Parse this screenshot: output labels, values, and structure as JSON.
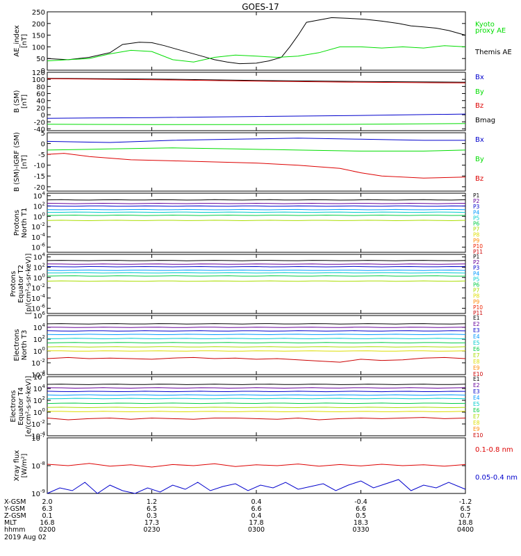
{
  "title": "GOES-17",
  "chart_data": [
    {
      "type": "line",
      "ylabel": "AE_index\n[nT]",
      "ylim": [
        0,
        250
      ],
      "yticks": [
        "0",
        "50",
        "100",
        "150",
        "200",
        "250"
      ],
      "legend": [
        "Kyoto",
        "proxy AE",
        "Themis AE"
      ],
      "legend_colors": [
        "#00dd00",
        "#00dd00",
        "#000000"
      ],
      "series": [
        {
          "name": "Themis AE",
          "color": "#000000",
          "x": [
            0,
            0.05,
            0.1,
            0.15,
            0.18,
            0.22,
            0.25,
            0.28,
            0.31,
            0.34,
            0.37,
            0.4,
            0.43,
            0.46,
            0.5,
            0.53,
            0.56,
            0.58,
            0.6,
            0.62,
            0.65,
            0.68,
            0.72,
            0.76,
            0.8,
            0.84,
            0.87,
            0.9,
            0.93,
            0.96,
            1.0
          ],
          "y": [
            50,
            45,
            55,
            75,
            110,
            120,
            118,
            105,
            90,
            75,
            60,
            45,
            35,
            28,
            30,
            40,
            55,
            100,
            150,
            205,
            215,
            225,
            222,
            218,
            210,
            200,
            190,
            185,
            180,
            170,
            150
          ]
        },
        {
          "name": "Kyoto proxy AE",
          "color": "#00dd00",
          "x": [
            0,
            0.05,
            0.1,
            0.15,
            0.2,
            0.25,
            0.3,
            0.35,
            0.4,
            0.45,
            0.5,
            0.55,
            0.6,
            0.65,
            0.7,
            0.75,
            0.8,
            0.85,
            0.9,
            0.95,
            1.0
          ],
          "y": [
            40,
            45,
            50,
            70,
            85,
            80,
            45,
            35,
            55,
            65,
            60,
            55,
            60,
            75,
            100,
            100,
            95,
            100,
            95,
            105,
            100
          ]
        }
      ]
    },
    {
      "type": "line",
      "ylabel": "B (SM)\n[nT]",
      "ylim": [
        -45,
        120
      ],
      "yticks": [
        "-40",
        "-20",
        "0",
        "20",
        "40",
        "60",
        "80",
        "100",
        "120"
      ],
      "legend": [
        "Bx",
        "By",
        "Bz",
        "Bmag"
      ],
      "legend_colors": [
        "#0000cc",
        "#00dd00",
        "#dd0000",
        "#000000"
      ],
      "series": [
        {
          "name": "Bmag",
          "color": "#000000",
          "x": [
            0,
            0.25,
            0.5,
            0.75,
            1.0
          ],
          "y": [
            103,
            101,
            97,
            94,
            92
          ]
        },
        {
          "name": "Bz",
          "color": "#dd0000",
          "x": [
            0,
            0.25,
            0.5,
            0.75,
            1.0
          ],
          "y": [
            102,
            99,
            95,
            92,
            90
          ]
        },
        {
          "name": "Bx",
          "color": "#0000cc",
          "x": [
            0,
            0.25,
            0.5,
            0.75,
            1.0
          ],
          "y": [
            -10,
            -8,
            -5,
            -2,
            2
          ]
        },
        {
          "name": "By",
          "color": "#00dd00",
          "x": [
            0,
            0.25,
            0.5,
            0.75,
            1.0
          ],
          "y": [
            -27,
            -28,
            -28,
            -27,
            -25
          ]
        }
      ]
    },
    {
      "type": "line",
      "ylabel": "B (SM)-IGRF (SM)\n[nT]",
      "ylim": [
        -22,
        5
      ],
      "yticks": [
        "-20",
        "-15",
        "-10",
        "-5",
        "0",
        "5"
      ],
      "legend": [
        "Bx",
        "By",
        "Bz"
      ],
      "legend_colors": [
        "#0000cc",
        "#00dd00",
        "#dd0000"
      ],
      "series": [
        {
          "name": "Bx",
          "color": "#0000cc",
          "x": [
            0,
            0.15,
            0.3,
            0.45,
            0.6,
            0.75,
            0.9,
            1.0
          ],
          "y": [
            1,
            0.5,
            1.5,
            2,
            2.5,
            2,
            1.5,
            1.5
          ]
        },
        {
          "name": "By",
          "color": "#00dd00",
          "x": [
            0,
            0.15,
            0.3,
            0.45,
            0.6,
            0.75,
            0.9,
            1.0
          ],
          "y": [
            -3,
            -2.5,
            -2,
            -2.5,
            -3,
            -3.5,
            -3.5,
            -3
          ]
        },
        {
          "name": "Bz",
          "color": "#dd0000",
          "x": [
            0,
            0.04,
            0.1,
            0.2,
            0.3,
            0.4,
            0.5,
            0.6,
            0.7,
            0.75,
            0.8,
            0.9,
            1.0
          ],
          "y": [
            -5,
            -4.5,
            -6,
            -7.5,
            -8,
            -8.5,
            -9,
            -10,
            -11.5,
            -13.5,
            -15,
            -16,
            -15.5
          ]
        }
      ]
    },
    {
      "type": "line",
      "ylabel": "Protons\nNorth T1",
      "ylim": [
        -7,
        4.5
      ],
      "yscale": "log",
      "yticks": [
        "10^4",
        "10^2",
        "10^0",
        "10^-2",
        "10^-4",
        "10^-6"
      ],
      "legend": [
        "P1",
        "P2",
        "P3",
        "P4",
        "P5",
        "P6",
        "P7",
        "P8",
        "P9",
        "P10",
        "P11"
      ],
      "legend_colors": [
        "#000000",
        "#660099",
        "#0000cc",
        "#0099ff",
        "#00cccc",
        "#00cc44",
        "#aadd00",
        "#dddd00",
        "#ff8800",
        "#ee2200",
        "#cc0000"
      ],
      "levels": [
        3.2,
        2.5,
        2.0,
        1.3,
        0.8,
        0.2,
        -0.8
      ]
    },
    {
      "type": "line",
      "ylabel": "Protons\nEquator T2\n[p/(cm²-s-sr-keV)]",
      "ylim": [
        -7,
        4.5
      ],
      "yscale": "log",
      "yticks": [
        "10^4",
        "10^2",
        "10^0",
        "10^-2",
        "10^-4",
        "10^-6"
      ],
      "legend": [
        "P1",
        "P2",
        "P3",
        "P4",
        "P5",
        "P6",
        "P7",
        "P8",
        "P9",
        "P10",
        "P11"
      ],
      "legend_colors": [
        "#000000",
        "#660099",
        "#0000cc",
        "#0099ff",
        "#00cccc",
        "#00cc44",
        "#aadd00",
        "#dddd00",
        "#ff8800",
        "#ee2200",
        "#cc0000"
      ],
      "levels": [
        3.3,
        2.6,
        2.1,
        1.4,
        0.9,
        0.3,
        -0.7
      ]
    },
    {
      "type": "line",
      "ylabel": "Electrons\nNorth T3",
      "ylim": [
        -4,
        6
      ],
      "yscale": "log",
      "yticks": [
        "10^6",
        "10^4",
        "10^2",
        "10^0",
        "10^-2",
        "10^-4"
      ],
      "legend": [
        "E1",
        "E2",
        "E3",
        "E4",
        "E5",
        "E6",
        "E7",
        "E8",
        "E9",
        "E10"
      ],
      "legend_colors": [
        "#000000",
        "#660099",
        "#0000cc",
        "#0099ff",
        "#00cccc",
        "#00cc44",
        "#aadd00",
        "#dddd00",
        "#ff8800",
        "#cc0000"
      ],
      "levels": [
        4.6,
        4.0,
        3.4,
        2.8,
        2.1,
        1.4,
        0.7,
        0.0
      ],
      "noisy": {
        "color": "#cc0000",
        "x": [
          0.0,
          0.05,
          0.1,
          0.15,
          0.2,
          0.25,
          0.3,
          0.35,
          0.4,
          0.45,
          0.5,
          0.55,
          0.6,
          0.65,
          0.7,
          0.75,
          0.8,
          0.85,
          0.9,
          0.95,
          1.0
        ],
        "y": [
          -1.3,
          -1.1,
          -1.3,
          -1.2,
          -1.3,
          -1.4,
          -1.2,
          -1.1,
          -1.3,
          -1.2,
          -1.4,
          -1.3,
          -1.5,
          -1.7,
          -1.9,
          -1.4,
          -1.6,
          -1.5,
          -1.2,
          -1.1,
          -1.3
        ]
      }
    },
    {
      "type": "line",
      "ylabel": "Electrons\nEquator T4\n[e/(cm²-s-sr-keV)]",
      "ylim": [
        -4,
        6
      ],
      "yscale": "log",
      "yticks": [
        "10^6",
        "10^4",
        "10^2",
        "10^0",
        "10^-2",
        "10^-4"
      ],
      "legend": [
        "E1",
        "E2",
        "E3",
        "E4",
        "E5",
        "E6",
        "E7",
        "E8",
        "E9",
        "E10"
      ],
      "legend_colors": [
        "#000000",
        "#660099",
        "#0000cc",
        "#0099ff",
        "#00cccc",
        "#00cc44",
        "#aadd00",
        "#dddd00",
        "#ff8800",
        "#cc0000"
      ],
      "levels": [
        4.7,
        4.1,
        3.5,
        2.9,
        2.3,
        1.5,
        0.8,
        0.1
      ],
      "noisy": {
        "color": "#cc0000",
        "x": [
          0.0,
          0.05,
          0.1,
          0.15,
          0.2,
          0.25,
          0.3,
          0.35,
          0.4,
          0.45,
          0.5,
          0.55,
          0.6,
          0.65,
          0.7,
          0.75,
          0.8,
          0.85,
          0.9,
          0.95,
          1.0
        ],
        "y": [
          -1.0,
          -1.3,
          -1.1,
          -1.0,
          -1.2,
          -1.0,
          -1.1,
          -1.2,
          -1.0,
          -1.0,
          -1.1,
          -1.2,
          -1.0,
          -1.3,
          -1.1,
          -1.0,
          -1.1,
          -1.0,
          -0.9,
          -1.1,
          -1.0
        ]
      }
    },
    {
      "type": "line",
      "ylabel": "Xray flux\n[W/m²]",
      "ylim": [
        -9,
        -7
      ],
      "yscale": "log",
      "yticks": [
        "10^-7",
        "10^-8",
        "10^-9"
      ],
      "legend": [
        "0.1-0.8 nm",
        "0.05-0.4 nm"
      ],
      "legend_colors": [
        "#dd0000",
        "#0000cc"
      ],
      "series": [
        {
          "name": "0.1-0.8 nm",
          "color": "#dd0000",
          "x": [
            0,
            0.05,
            0.1,
            0.15,
            0.2,
            0.25,
            0.3,
            0.35,
            0.4,
            0.45,
            0.5,
            0.55,
            0.6,
            0.65,
            0.7,
            0.75,
            0.8,
            0.85,
            0.9,
            0.95,
            1.0
          ],
          "y": [
            -7.95,
            -8.0,
            -7.92,
            -8.02,
            -7.97,
            -8.05,
            -7.96,
            -8.0,
            -7.93,
            -8.03,
            -7.97,
            -8.0,
            -7.94,
            -8.02,
            -7.96,
            -8.01,
            -7.95,
            -8.0,
            -7.97,
            -8.02,
            -7.96
          ]
        },
        {
          "name": "0.05-0.4 nm",
          "color": "#0000cc",
          "x": [
            0,
            0.03,
            0.06,
            0.09,
            0.12,
            0.15,
            0.18,
            0.21,
            0.24,
            0.27,
            0.3,
            0.33,
            0.36,
            0.39,
            0.42,
            0.45,
            0.48,
            0.51,
            0.54,
            0.57,
            0.6,
            0.63,
            0.66,
            0.69,
            0.72,
            0.75,
            0.78,
            0.81,
            0.84,
            0.87,
            0.9,
            0.93,
            0.96,
            1.0
          ],
          "y": [
            -9.0,
            -8.8,
            -8.9,
            -8.6,
            -9.0,
            -8.7,
            -8.9,
            -9.0,
            -8.8,
            -8.95,
            -8.7,
            -8.85,
            -8.6,
            -8.9,
            -8.75,
            -8.65,
            -8.9,
            -8.7,
            -8.8,
            -8.6,
            -8.85,
            -8.75,
            -8.65,
            -8.9,
            -8.7,
            -8.55,
            -8.8,
            -8.65,
            -8.5,
            -8.9,
            -8.7,
            -8.8,
            -8.6,
            -8.85
          ]
        }
      ]
    }
  ],
  "footer": {
    "row_labels": [
      "X-GSM",
      "Y-GSM",
      "Z-GSM",
      "MLT",
      "hhmm"
    ],
    "date": "2019 Aug 02",
    "columns": [
      [
        "2.0",
        "6.3",
        "0.1",
        "16.8",
        "0200"
      ],
      [
        "1.2",
        "6.5",
        "0.3",
        "17.3",
        "0230"
      ],
      [
        "0.4",
        "6.6",
        "0.4",
        "17.8",
        "0300"
      ],
      [
        "-0.4",
        "6.6",
        "0.5",
        "18.3",
        "0330"
      ],
      [
        "-1.2",
        "6.5",
        "0.7",
        "18.8",
        "0400"
      ]
    ]
  }
}
